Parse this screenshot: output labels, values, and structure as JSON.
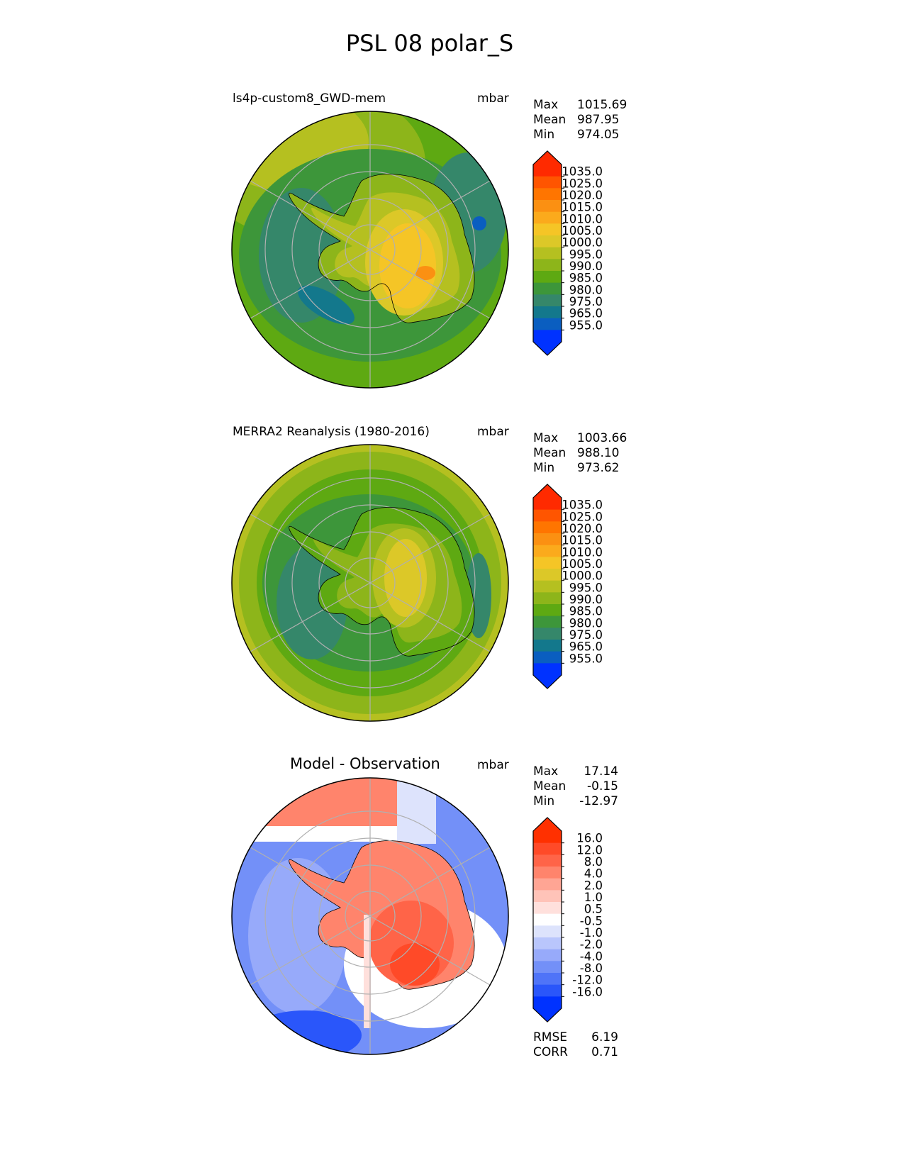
{
  "figure_title": "PSL 08 polar_S",
  "chart_data": [
    {
      "type": "heatmap",
      "projection": "south polar stereographic",
      "title": "ls4p-custom8_GWD-mem",
      "units": "mbar",
      "stats": {
        "max_label": "Max",
        "max": "1015.69",
        "mean_label": "Mean",
        "mean": "987.95",
        "min_label": "Min",
        "min": "974.05"
      },
      "colorbar_levels": [
        "1035.0",
        "1025.0",
        "1020.0",
        "1015.0",
        "1010.0",
        "1005.0",
        "1000.0",
        "995.0",
        "990.0",
        "985.0",
        "980.0",
        "975.0",
        "965.0",
        "955.0"
      ],
      "colorbar_colors": [
        "#ff2a00",
        "#ff5500",
        "#ff7500",
        "#fb9012",
        "#fbaa1c",
        "#f5c526",
        "#dcc828",
        "#b5c020",
        "#8db51a",
        "#5ea912",
        "#3d963a",
        "#35876a",
        "#13788c",
        "#0a5ec0",
        "#0032ff"
      ]
    },
    {
      "type": "heatmap",
      "projection": "south polar stereographic",
      "title": "MERRA2 Reanalysis (1980-2016)",
      "units": "mbar",
      "stats": {
        "max_label": "Max",
        "max": "1003.66",
        "mean_label": "Mean",
        "mean": "988.10",
        "min_label": "Min",
        "min": "973.62"
      },
      "colorbar_levels": [
        "1035.0",
        "1025.0",
        "1020.0",
        "1015.0",
        "1010.0",
        "1005.0",
        "1000.0",
        "995.0",
        "990.0",
        "985.0",
        "980.0",
        "975.0",
        "965.0",
        "955.0"
      ],
      "colorbar_colors": [
        "#ff2a00",
        "#ff5500",
        "#ff7500",
        "#fb9012",
        "#fbaa1c",
        "#f5c526",
        "#dcc828",
        "#b5c020",
        "#8db51a",
        "#5ea912",
        "#3d963a",
        "#35876a",
        "#13788c",
        "#0a5ec0",
        "#0032ff"
      ]
    },
    {
      "type": "heatmap",
      "projection": "south polar stereographic",
      "title": "Model - Observation",
      "units": "mbar",
      "stats": {
        "max_label": "Max",
        "max": "17.14",
        "mean_label": "Mean",
        "mean": "-0.15",
        "min_label": "Min",
        "min": "-12.97"
      },
      "colorbar_levels": [
        "16.0",
        "12.0",
        "8.0",
        "4.0",
        "2.0",
        "1.0",
        "0.5",
        "-0.5",
        "-1.0",
        "-2.0",
        "-4.0",
        "-8.0",
        "-12.0",
        "-16.0"
      ],
      "colorbar_colors": [
        "#ff3000",
        "#ff4a28",
        "#ff6448",
        "#ff846c",
        "#ffa594",
        "#ffc3b8",
        "#ffe0dc",
        "#ffffff",
        "#dde3fc",
        "#b9c6fc",
        "#97aafa",
        "#7390f8",
        "#4f74f8",
        "#2a56fa",
        "#0032ff"
      ],
      "metrics": {
        "rmse_label": "RMSE",
        "rmse": "6.19",
        "corr_label": "CORR",
        "corr": "0.71"
      }
    }
  ]
}
